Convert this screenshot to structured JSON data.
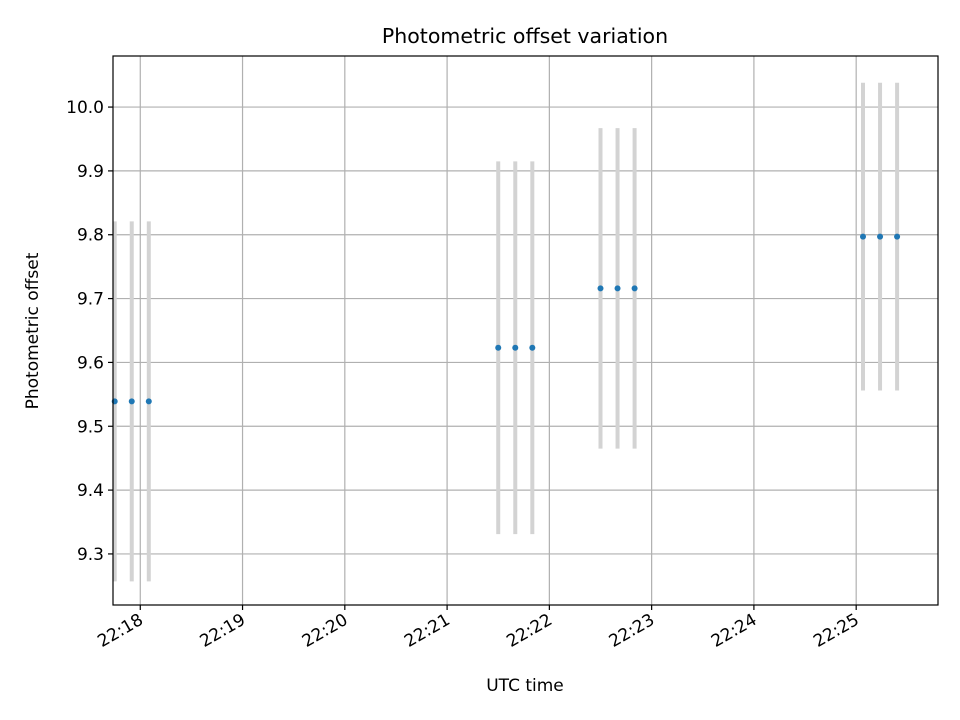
{
  "chart_data": {
    "type": "scatter",
    "title": "Photometric offset variation",
    "xlabel": "UTC time",
    "ylabel": "Photometric offset",
    "x_axis_type": "time",
    "xlim": [
      "22:17:44",
      "22:25:48"
    ],
    "ylim": [
      9.22,
      10.08
    ],
    "grid": true,
    "x_ticks": [
      "22:18",
      "22:19",
      "22:20",
      "22:21",
      "22:22",
      "22:23",
      "22:24",
      "22:25"
    ],
    "y_ticks": [
      9.3,
      9.4,
      9.5,
      9.6,
      9.7,
      9.8,
      9.9,
      10.0
    ],
    "y_tick_labels": [
      "9.3",
      "9.4",
      "9.5",
      "9.6",
      "9.7",
      "9.8",
      "9.9",
      "10.0"
    ],
    "series": [
      {
        "marker_color": "#1f77b4",
        "errorbar_color": "#d3d3d3",
        "points": [
          {
            "x": "22:17:45",
            "y": 9.539,
            "yerr": 0.282
          },
          {
            "x": "22:17:55",
            "y": 9.539,
            "yerr": 0.282
          },
          {
            "x": "22:18:05",
            "y": 9.539,
            "yerr": 0.282
          },
          {
            "x": "22:21:30",
            "y": 9.623,
            "yerr": 0.292
          },
          {
            "x": "22:21:40",
            "y": 9.623,
            "yerr": 0.292
          },
          {
            "x": "22:21:50",
            "y": 9.623,
            "yerr": 0.292
          },
          {
            "x": "22:22:30",
            "y": 9.716,
            "yerr": 0.251
          },
          {
            "x": "22:22:40",
            "y": 9.716,
            "yerr": 0.251
          },
          {
            "x": "22:22:50",
            "y": 9.716,
            "yerr": 0.251
          },
          {
            "x": "22:25:04",
            "y": 9.797,
            "yerr": 0.241
          },
          {
            "x": "22:25:14",
            "y": 9.797,
            "yerr": 0.241
          },
          {
            "x": "22:25:24",
            "y": 9.797,
            "yerr": 0.241
          }
        ]
      }
    ]
  }
}
